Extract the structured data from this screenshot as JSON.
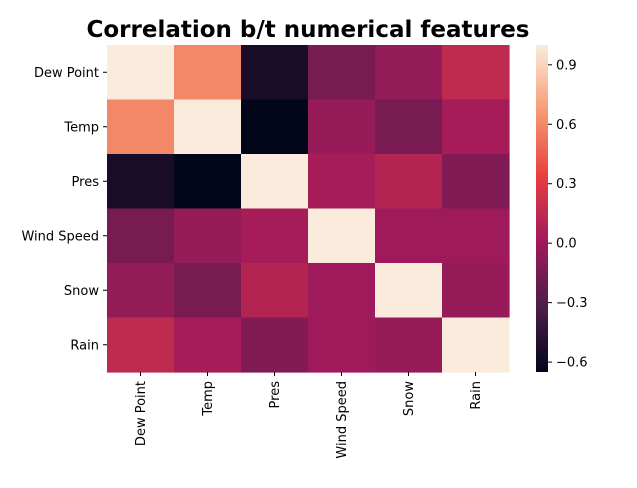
{
  "chart_data": {
    "type": "heatmap",
    "title": "Correlation b/t numerical features",
    "xlabel": "",
    "ylabel": "",
    "rows": [
      "Dew Point",
      "Temp",
      "Pres",
      "Wind Speed",
      "Snow",
      "Rain"
    ],
    "columns": [
      "Dew Point",
      "Temp",
      "Pres",
      "Wind Speed",
      "Snow",
      "Rain"
    ],
    "values": [
      [
        1.0,
        0.6,
        -0.55,
        -0.15,
        -0.05,
        0.15
      ],
      [
        0.6,
        1.0,
        -0.65,
        -0.03,
        -0.15,
        0.03
      ],
      [
        -0.55,
        -0.65,
        1.0,
        0.03,
        0.1,
        -0.12
      ],
      [
        -0.15,
        -0.03,
        0.03,
        1.0,
        0.0,
        0.0
      ],
      [
        -0.05,
        -0.15,
        0.1,
        0.0,
        1.0,
        -0.03
      ],
      [
        0.15,
        0.03,
        -0.12,
        0.0,
        -0.03,
        1.0
      ]
    ],
    "colorbar": {
      "vmin": -0.65,
      "vmax": 1.0,
      "ticks": [
        -0.6,
        -0.3,
        0.0,
        0.3,
        0.6,
        0.9
      ],
      "tick_labels": [
        "−0.6",
        "−0.3",
        "0.0",
        "0.3",
        "0.6",
        "0.9"
      ]
    },
    "colormap": "rocket",
    "colormap_stops": [
      "#03051a",
      "#4c1d4b",
      "#a11a5b",
      "#e83f3f",
      "#f69c73",
      "#faebdd"
    ]
  }
}
